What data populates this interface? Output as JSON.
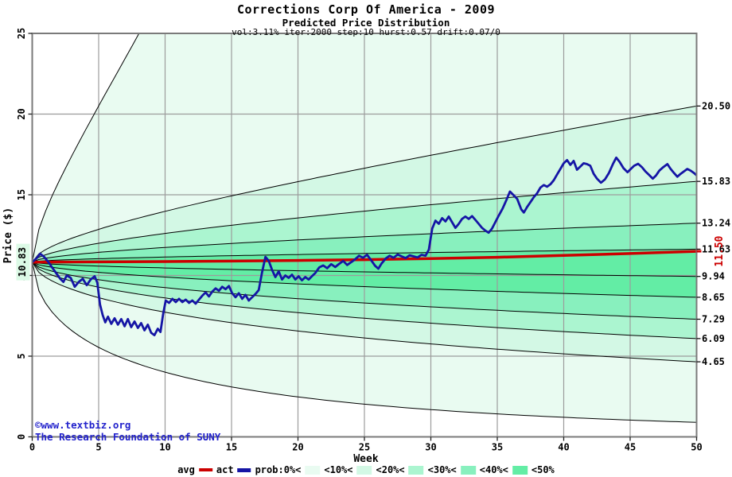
{
  "header": {
    "title": "Corrections Corp Of America - 2009",
    "subtitle": "Predicted Price Distribution",
    "params": "vol:3.11% iter:2000 step:10 hurst:0.57 drift:0.07/0"
  },
  "watermark": {
    "line1": "©www.textbiz.org",
    "line2": "The Research Foundation of SUNY",
    "color": "#2222cc"
  },
  "legend": {
    "avg_label": "avg",
    "act_label": "act",
    "prob_labels": [
      "prob:0%<",
      "<10%<",
      "<20%<",
      "<30%<",
      "<40%<",
      "<50%"
    ]
  },
  "colors": {
    "avg": "#cc0000",
    "act": "#1515a5",
    "band_0_10": "#e9fbf1",
    "band_10_20": "#d3f8e5",
    "band_20_30": "#abf5d0",
    "band_30_40": "#88f0be",
    "band_40_50": "#63eda5",
    "grid": "#9c9c9c",
    "frame": "#7a7a7a",
    "curve": "#000000",
    "tick": "#222222",
    "start_label_bg": "#dcfae6"
  },
  "chart_data": {
    "type": "line",
    "title": "Corrections Corp Of America - 2009",
    "subtitle": "Predicted Price Distribution",
    "xlabel": "Week",
    "ylabel": "Price ($)",
    "xlim": [
      0,
      50
    ],
    "ylim": [
      0,
      25
    ],
    "x_ticks": [
      0,
      5,
      10,
      15,
      20,
      25,
      30,
      35,
      40,
      45,
      50
    ],
    "y_ticks": [
      0,
      5,
      10,
      15,
      20,
      25
    ],
    "grid": true,
    "start_price": 10.83,
    "start_price_label": "10.83",
    "hurst": 0.57,
    "curve_model": "price(week) = start_price * (end/start_price)^((week/50)^hurst)",
    "percentiles": [
      {
        "name": "max",
        "end": 116.0,
        "label": ""
      },
      {
        "name": "p90",
        "end": 20.5,
        "label": "20.50"
      },
      {
        "name": "p80",
        "end": 15.83,
        "label": "15.83"
      },
      {
        "name": "p70",
        "end": 13.24,
        "label": "13.24"
      },
      {
        "name": "p60",
        "end": 11.63,
        "label": "11.63"
      },
      {
        "name": "p50",
        "end": 9.94,
        "label": "9.94"
      },
      {
        "name": "p40",
        "end": 8.65,
        "label": "8.65"
      },
      {
        "name": "p30",
        "end": 7.29,
        "label": "7.29"
      },
      {
        "name": "p20",
        "end": 6.09,
        "label": "6.09"
      },
      {
        "name": "p10",
        "end": 4.65,
        "label": "4.65"
      },
      {
        "name": "min",
        "end": 0.9,
        "label": ""
      }
    ],
    "bands": [
      {
        "upper": "max",
        "lower": "p90",
        "color_key": "band_0_10"
      },
      {
        "upper": "p90",
        "lower": "p80",
        "color_key": "band_10_20"
      },
      {
        "upper": "p80",
        "lower": "p70",
        "color_key": "band_20_30"
      },
      {
        "upper": "p70",
        "lower": "p60",
        "color_key": "band_30_40"
      },
      {
        "upper": "p60",
        "lower": "p50",
        "color_key": "band_40_50"
      },
      {
        "upper": "p50",
        "lower": "p40",
        "color_key": "band_40_50"
      },
      {
        "upper": "p40",
        "lower": "p30",
        "color_key": "band_30_40"
      },
      {
        "upper": "p30",
        "lower": "p20",
        "color_key": "band_20_30"
      },
      {
        "upper": "p20",
        "lower": "p10",
        "color_key": "band_10_20"
      },
      {
        "upper": "p10",
        "lower": "min",
        "color_key": "band_0_10"
      }
    ],
    "avg_series": {
      "name": "avg",
      "end_label": "11.50",
      "points": [
        [
          0,
          10.83
        ],
        [
          5,
          10.84
        ],
        [
          10,
          10.86
        ],
        [
          15,
          10.89
        ],
        [
          20,
          10.93
        ],
        [
          25,
          10.98
        ],
        [
          30,
          11.05
        ],
        [
          35,
          11.13
        ],
        [
          40,
          11.24
        ],
        [
          45,
          11.36
        ],
        [
          50,
          11.5
        ]
      ]
    },
    "act_series": {
      "name": "act",
      "points": [
        [
          0,
          10.83
        ],
        [
          0.3,
          11.05
        ],
        [
          0.6,
          11.35
        ],
        [
          0.9,
          11.15
        ],
        [
          1.2,
          10.85
        ],
        [
          1.5,
          10.5
        ],
        [
          1.8,
          10.15
        ],
        [
          2.1,
          9.8
        ],
        [
          2.35,
          9.6
        ],
        [
          2.6,
          10.0
        ],
        [
          2.9,
          9.85
        ],
        [
          3.2,
          9.3
        ],
        [
          3.5,
          9.6
        ],
        [
          3.8,
          9.8
        ],
        [
          4.1,
          9.4
        ],
        [
          4.4,
          9.75
        ],
        [
          4.7,
          9.95
        ],
        [
          4.9,
          9.55
        ],
        [
          5.1,
          8.2
        ],
        [
          5.3,
          7.55
        ],
        [
          5.5,
          7.1
        ],
        [
          5.7,
          7.45
        ],
        [
          5.95,
          7.0
        ],
        [
          6.2,
          7.35
        ],
        [
          6.45,
          6.95
        ],
        [
          6.7,
          7.3
        ],
        [
          6.95,
          6.85
        ],
        [
          7.2,
          7.3
        ],
        [
          7.45,
          6.8
        ],
        [
          7.7,
          7.15
        ],
        [
          7.95,
          6.75
        ],
        [
          8.2,
          7.05
        ],
        [
          8.45,
          6.6
        ],
        [
          8.7,
          6.95
        ],
        [
          8.95,
          6.45
        ],
        [
          9.2,
          6.3
        ],
        [
          9.45,
          6.7
        ],
        [
          9.65,
          6.5
        ],
        [
          9.85,
          7.6
        ],
        [
          10.05,
          8.45
        ],
        [
          10.3,
          8.3
        ],
        [
          10.55,
          8.55
        ],
        [
          10.8,
          8.35
        ],
        [
          11.05,
          8.55
        ],
        [
          11.3,
          8.35
        ],
        [
          11.55,
          8.5
        ],
        [
          11.8,
          8.3
        ],
        [
          12.05,
          8.45
        ],
        [
          12.3,
          8.25
        ],
        [
          12.55,
          8.5
        ],
        [
          12.8,
          8.75
        ],
        [
          13.05,
          8.95
        ],
        [
          13.3,
          8.7
        ],
        [
          13.55,
          9.0
        ],
        [
          13.8,
          9.2
        ],
        [
          14.05,
          9.05
        ],
        [
          14.3,
          9.3
        ],
        [
          14.55,
          9.15
        ],
        [
          14.8,
          9.35
        ],
        [
          15.05,
          8.9
        ],
        [
          15.3,
          8.65
        ],
        [
          15.55,
          8.9
        ],
        [
          15.8,
          8.55
        ],
        [
          16.05,
          8.8
        ],
        [
          16.3,
          8.45
        ],
        [
          16.55,
          8.65
        ],
        [
          16.8,
          8.85
        ],
        [
          17.05,
          9.1
        ],
        [
          17.3,
          10.2
        ],
        [
          17.55,
          11.15
        ],
        [
          17.8,
          10.9
        ],
        [
          18.05,
          10.35
        ],
        [
          18.3,
          9.9
        ],
        [
          18.55,
          10.25
        ],
        [
          18.8,
          9.75
        ],
        [
          19.05,
          10.0
        ],
        [
          19.3,
          9.85
        ],
        [
          19.55,
          10.05
        ],
        [
          19.8,
          9.75
        ],
        [
          20.05,
          9.95
        ],
        [
          20.3,
          9.7
        ],
        [
          20.55,
          9.9
        ],
        [
          20.8,
          9.75
        ],
        [
          21.05,
          9.95
        ],
        [
          21.3,
          10.15
        ],
        [
          21.6,
          10.5
        ],
        [
          21.9,
          10.62
        ],
        [
          22.2,
          10.45
        ],
        [
          22.5,
          10.7
        ],
        [
          22.8,
          10.52
        ],
        [
          23.1,
          10.72
        ],
        [
          23.4,
          10.9
        ],
        [
          23.7,
          10.65
        ],
        [
          24,
          10.82
        ],
        [
          24.3,
          11.0
        ],
        [
          24.6,
          11.22
        ],
        [
          24.9,
          11.1
        ],
        [
          25.2,
          11.28
        ],
        [
          25.5,
          10.95
        ],
        [
          25.8,
          10.6
        ],
        [
          26.05,
          10.42
        ],
        [
          26.3,
          10.75
        ],
        [
          26.6,
          11.05
        ],
        [
          26.9,
          11.22
        ],
        [
          27.2,
          11.1
        ],
        [
          27.5,
          11.3
        ],
        [
          27.8,
          11.18
        ],
        [
          28.1,
          11.08
        ],
        [
          28.4,
          11.25
        ],
        [
          28.7,
          11.18
        ],
        [
          29,
          11.12
        ],
        [
          29.3,
          11.28
        ],
        [
          29.6,
          11.22
        ],
        [
          29.85,
          11.6
        ],
        [
          30.1,
          12.9
        ],
        [
          30.35,
          13.4
        ],
        [
          30.6,
          13.2
        ],
        [
          30.85,
          13.55
        ],
        [
          31.1,
          13.35
        ],
        [
          31.35,
          13.65
        ],
        [
          31.6,
          13.3
        ],
        [
          31.85,
          12.95
        ],
        [
          32.1,
          13.2
        ],
        [
          32.35,
          13.5
        ],
        [
          32.6,
          13.65
        ],
        [
          32.85,
          13.5
        ],
        [
          33.1,
          13.68
        ],
        [
          33.35,
          13.45
        ],
        [
          33.6,
          13.2
        ],
        [
          33.85,
          12.95
        ],
        [
          34.1,
          12.78
        ],
        [
          34.35,
          12.65
        ],
        [
          34.6,
          12.9
        ],
        [
          34.85,
          13.3
        ],
        [
          35.1,
          13.7
        ],
        [
          35.4,
          14.15
        ],
        [
          35.7,
          14.7
        ],
        [
          35.95,
          15.2
        ],
        [
          36.2,
          15.0
        ],
        [
          36.5,
          14.75
        ],
        [
          36.8,
          14.1
        ],
        [
          37,
          13.9
        ],
        [
          37.25,
          14.25
        ],
        [
          37.5,
          14.55
        ],
        [
          37.75,
          14.85
        ],
        [
          38,
          15.1
        ],
        [
          38.25,
          15.45
        ],
        [
          38.5,
          15.6
        ],
        [
          38.75,
          15.5
        ],
        [
          39,
          15.65
        ],
        [
          39.25,
          15.9
        ],
        [
          39.5,
          16.25
        ],
        [
          39.75,
          16.6
        ],
        [
          40,
          16.95
        ],
        [
          40.25,
          17.15
        ],
        [
          40.5,
          16.85
        ],
        [
          40.75,
          17.1
        ],
        [
          41,
          16.55
        ],
        [
          41.25,
          16.75
        ],
        [
          41.5,
          16.95
        ],
        [
          41.75,
          16.9
        ],
        [
          42,
          16.8
        ],
        [
          42.25,
          16.3
        ],
        [
          42.5,
          16.0
        ],
        [
          42.8,
          15.75
        ],
        [
          43.1,
          15.95
        ],
        [
          43.4,
          16.35
        ],
        [
          43.7,
          16.9
        ],
        [
          43.95,
          17.3
        ],
        [
          44.2,
          17.05
        ],
        [
          44.5,
          16.65
        ],
        [
          44.8,
          16.4
        ],
        [
          45.05,
          16.6
        ],
        [
          45.3,
          16.8
        ],
        [
          45.6,
          16.92
        ],
        [
          45.9,
          16.7
        ],
        [
          46.15,
          16.45
        ],
        [
          46.4,
          16.25
        ],
        [
          46.7,
          16.0
        ],
        [
          46.95,
          16.2
        ],
        [
          47.2,
          16.5
        ],
        [
          47.5,
          16.72
        ],
        [
          47.8,
          16.9
        ],
        [
          48.05,
          16.6
        ],
        [
          48.3,
          16.35
        ],
        [
          48.55,
          16.12
        ],
        [
          48.8,
          16.3
        ],
        [
          49.05,
          16.45
        ],
        [
          49.3,
          16.6
        ],
        [
          49.55,
          16.5
        ],
        [
          49.8,
          16.35
        ],
        [
          50,
          16.2
        ]
      ]
    }
  }
}
